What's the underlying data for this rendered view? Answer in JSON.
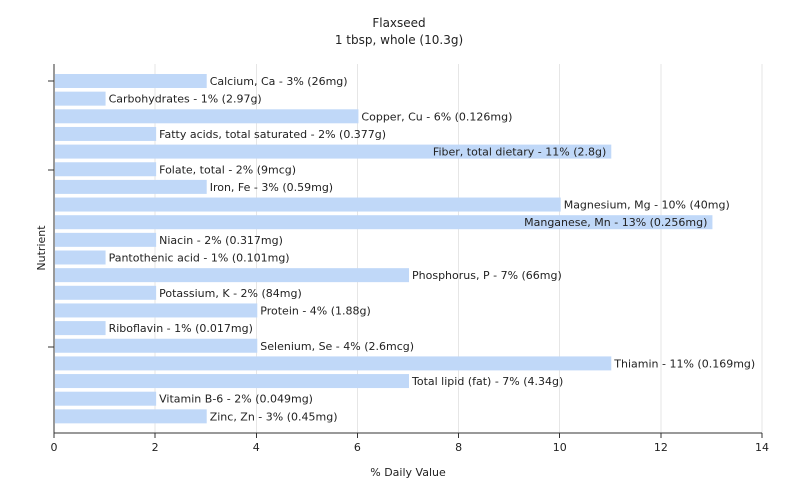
{
  "chart_data": {
    "type": "bar",
    "orientation": "horizontal",
    "title": "Flaxseed",
    "subtitle": "1 tbsp, whole (10.3g)",
    "xlabel": "% Daily Value",
    "ylabel": "Nutrient",
    "xlim": [
      0,
      14
    ],
    "xticks": [
      0,
      2,
      4,
      6,
      8,
      10,
      12,
      14
    ],
    "grid": "vertical",
    "bar_color": "#c0d8f8",
    "categories": [
      "Calcium, Ca - 3% (26mg)",
      "Carbohydrates - 1% (2.97g)",
      "Copper, Cu - 6% (0.126mg)",
      "Fatty acids, total saturated - 2% (0.377g)",
      "Fiber, total dietary - 11% (2.8g)",
      "Folate, total - 2% (9mcg)",
      "Iron, Fe - 3% (0.59mg)",
      "Magnesium, Mg - 10% (40mg)",
      "Manganese, Mn - 13% (0.256mg)",
      "Niacin - 2% (0.317mg)",
      "Pantothenic acid - 1% (0.101mg)",
      "Phosphorus, P - 7% (66mg)",
      "Potassium, K - 2% (84mg)",
      "Protein - 4% (1.88g)",
      "Riboflavin - 1% (0.017mg)",
      "Selenium, Se - 4% (2.6mcg)",
      "Thiamin - 11% (0.169mg)",
      "Total lipid (fat) - 7% (4.34g)",
      "Vitamin B-6 - 2% (0.049mg)",
      "Zinc, Zn - 3% (0.45mg)"
    ],
    "values": [
      3,
      1,
      6,
      2,
      11,
      2,
      3,
      10,
      13,
      2,
      1,
      7,
      2,
      4,
      1,
      4,
      11,
      7,
      2,
      3
    ],
    "label_inside": [
      false,
      false,
      false,
      false,
      true,
      false,
      false,
      false,
      true,
      false,
      false,
      false,
      false,
      false,
      false,
      false,
      false,
      false,
      false,
      false
    ]
  }
}
